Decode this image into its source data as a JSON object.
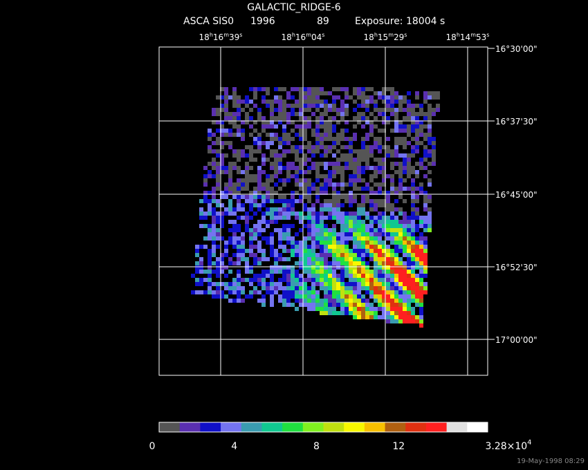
{
  "title": "GALACTIC_RIDGE-6",
  "subtitle": [
    "ASCA SIS0",
    "1996",
    "89",
    "Exposure: 18004 s"
  ],
  "ra_labels": [
    [
      "18",
      "h",
      "16",
      "m",
      "39",
      "s"
    ],
    [
      "18",
      "h",
      "16",
      "m",
      "04",
      "s"
    ],
    [
      "18",
      "h",
      "15",
      "m",
      "29",
      "s"
    ],
    [
      "18",
      "h",
      "14",
      "m",
      "53",
      "s"
    ]
  ],
  "dec_labels": [
    "16°30'00\"",
    "16°37'30\"",
    "16°45'00\"",
    "16°52'30\"",
    "17°00'00\""
  ],
  "colorbar": {
    "colors": [
      "#555555",
      "#5a2fb0",
      "#1010c8",
      "#7474f0",
      "#3a9cb0",
      "#10c890",
      "#20e040",
      "#80f020",
      "#c0e010",
      "#f8f800",
      "#f8c000",
      "#b06010",
      "#e03010",
      "#ff2020",
      "#e0e0e0",
      "#ffffff"
    ],
    "ticks": [
      0,
      4,
      8,
      12
    ],
    "max_label": [
      "3.28×10",
      "4"
    ]
  },
  "timestamp": "19-May-1998 08:29"
}
